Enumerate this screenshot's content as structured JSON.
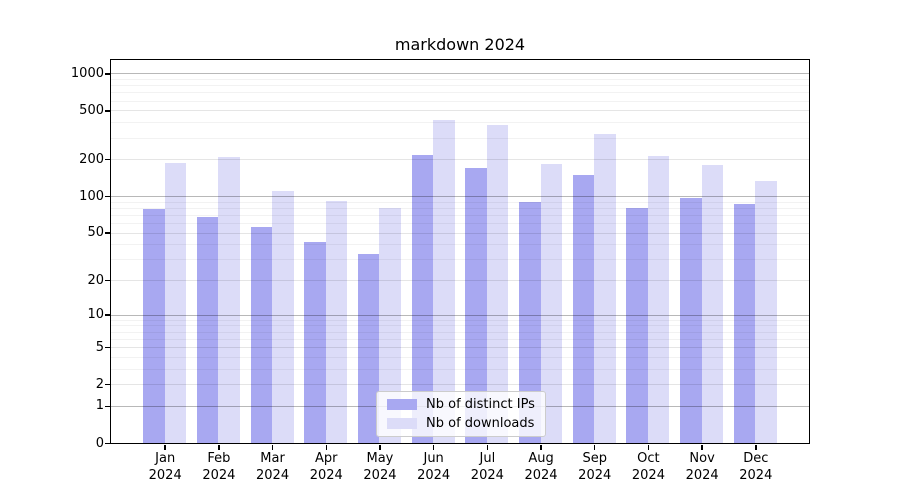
{
  "title": "markdown 2024",
  "colors": {
    "distinct_ips": "#a8a8f1",
    "downloads": "#dcdcf8"
  },
  "legend": {
    "items": [
      {
        "label": "Nb of distinct IPs",
        "color_key": "distinct_ips"
      },
      {
        "label": "Nb of downloads",
        "color_key": "downloads"
      }
    ]
  },
  "y_axis": {
    "tick_labels": [
      "0",
      "1",
      "2",
      "5",
      "10",
      "20",
      "50",
      "100",
      "200",
      "500",
      "1000"
    ],
    "tick_values": [
      0,
      1,
      2,
      5,
      10,
      20,
      50,
      100,
      200,
      500,
      1000
    ]
  },
  "x_axis": {
    "months": [
      "Jan",
      "Feb",
      "Mar",
      "Apr",
      "May",
      "Jun",
      "Jul",
      "Aug",
      "Sep",
      "Oct",
      "Nov",
      "Dec"
    ],
    "year": "2024"
  },
  "chart_data": {
    "type": "bar",
    "title": "markdown 2024",
    "categories": [
      "Jan 2024",
      "Feb 2024",
      "Mar 2024",
      "Apr 2024",
      "May 2024",
      "Jun 2024",
      "Jul 2024",
      "Aug 2024",
      "Sep 2024",
      "Oct 2024",
      "Nov 2024",
      "Dec 2024"
    ],
    "series": [
      {
        "name": "Nb of distinct IPs",
        "values": [
          78,
          67,
          56,
          42,
          33,
          218,
          170,
          89,
          148,
          80,
          97,
          86
        ]
      },
      {
        "name": "Nb of downloads",
        "values": [
          185,
          208,
          110,
          91,
          80,
          414,
          380,
          183,
          323,
          211,
          179,
          134
        ]
      }
    ],
    "yscale": "log10(value+1)",
    "ylim": [
      0,
      1283
    ],
    "yticks": [
      0,
      1,
      2,
      5,
      10,
      20,
      50,
      100,
      200,
      500,
      1000
    ],
    "grid": true,
    "legend_position": "lower center",
    "xlabel": "",
    "ylabel": ""
  }
}
